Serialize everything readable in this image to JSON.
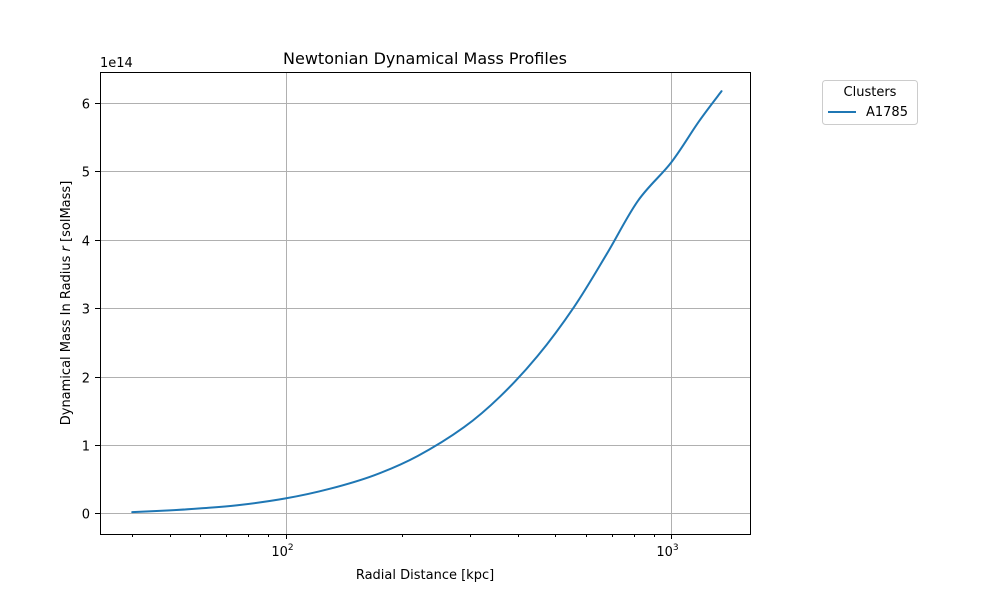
{
  "chart_data": {
    "type": "line",
    "title": "Newtonian Dynamical Mass Profiles",
    "xlabel": "Radial Distance [kpc]",
    "ylabel_prefix": "Dynamical Mass In Radius ",
    "ylabel_var": "r",
    "ylabel_suffix": " [solMass]",
    "y_offset_label": "1e14",
    "xscale": "log",
    "xlim": [
      33.0,
      1600.0
    ],
    "ylim": [
      -0.3,
      6.45
    ],
    "x_ticks": [
      {
        "value": 100,
        "base": "10",
        "exp": "2"
      },
      {
        "value": 1000,
        "base": "10",
        "exp": "3"
      }
    ],
    "y_ticks": [
      0,
      1,
      2,
      3,
      4,
      5,
      6
    ],
    "grid": true,
    "legend": {
      "title": "Clusters",
      "placement": "outside-right-top"
    },
    "series": [
      {
        "name": "A1785",
        "color": "#1f77b4",
        "x": [
          40,
          50,
          60,
          75,
          100,
          130,
          170,
          220,
          290,
          360,
          450,
          560,
          680,
          820,
          1000,
          1180,
          1350
        ],
        "y": [
          0.02,
          0.045,
          0.075,
          0.12,
          0.22,
          0.36,
          0.56,
          0.84,
          1.26,
          1.71,
          2.3,
          3.02,
          3.79,
          4.57,
          5.13,
          5.73,
          6.17
        ]
      }
    ]
  }
}
